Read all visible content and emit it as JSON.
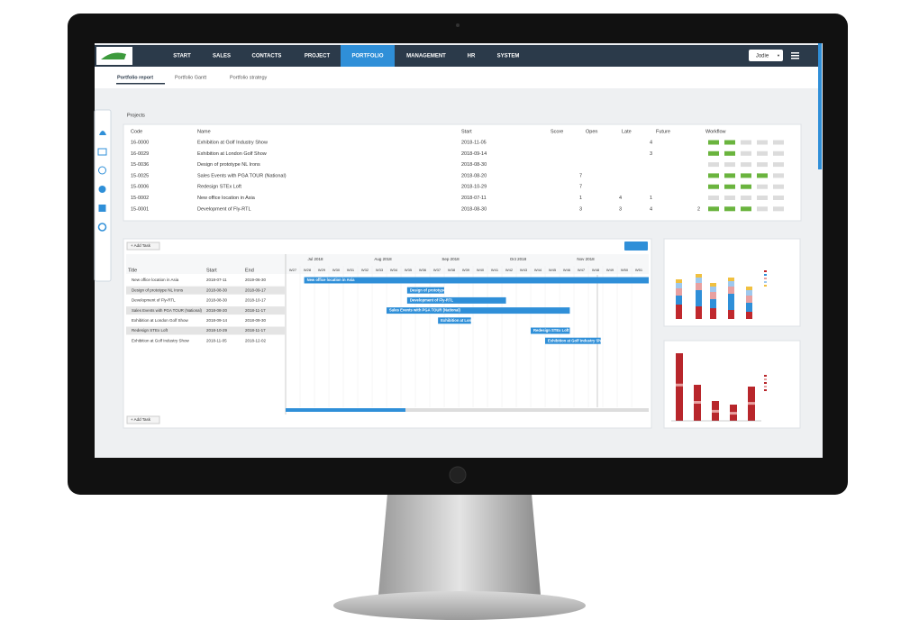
{
  "nav": {
    "items": [
      "START",
      "SALES",
      "CONTACTS",
      "PROJECT",
      "PORTFOLIO",
      "MANAGEMENT",
      "HR",
      "SYSTEM"
    ],
    "user": "Jodie"
  },
  "tabs": [
    "Portfolio report",
    "Portfolio Gantt",
    "Portfolio strategy"
  ],
  "projects": {
    "title": "Projects",
    "columns": [
      "Code",
      "Name",
      "Start",
      "Score",
      "Open",
      "Late",
      "Future",
      "Workflow"
    ],
    "rows": [
      {
        "code": "16-0000",
        "name": "Exhibition at Golf Industry Show",
        "start": "2018-11-05",
        "future": "4"
      },
      {
        "code": "16-0029",
        "name": "Exhibition at London Golf Show",
        "start": "2018-09-14",
        "future": "3"
      },
      {
        "code": "15-0036",
        "name": "Design of prototype NL Irons",
        "start": "2018-08-30"
      },
      {
        "code": "15-0025",
        "name": "Sales Events with PGA TOUR (National)",
        "start": "2018-08-20",
        "open": "7"
      },
      {
        "code": "15-0006",
        "name": "Redesign STEx Loft",
        "start": "2018-10-29",
        "open": "7"
      },
      {
        "code": "15-0002",
        "name": "New office location in Asia",
        "start": "2018-07-11",
        "open": "1",
        "late": "4",
        "future": "1"
      },
      {
        "code": "15-0001",
        "name": "Development of Fly-RTL",
        "start": "2018-08-30",
        "open": "3",
        "late": "3",
        "future": "4",
        "workflow": "2"
      }
    ]
  },
  "gantt": {
    "add_task": "+ Add Task",
    "columns": [
      "Title",
      "Start",
      "End"
    ],
    "months": [
      "Jul 2018",
      "Aug 2018",
      "Sep 2018",
      "Oct 2018",
      "Nov 2018"
    ],
    "weeks": [
      "W27",
      "W28",
      "W29",
      "W30",
      "W31",
      "W32",
      "W33",
      "W34",
      "W35",
      "W36",
      "W37",
      "W38",
      "W39",
      "W40",
      "W41",
      "W42",
      "W43",
      "W44",
      "W45",
      "W46",
      "W47",
      "W48",
      "W49",
      "W50",
      "W51"
    ],
    "rows": [
      {
        "title": "New office location in Asia",
        "start": "2018-07-11",
        "end": "2019-06-30"
      },
      {
        "title": "Design of prototype NL Irons",
        "start": "2018-08-30",
        "end": "2018-09-17"
      },
      {
        "title": "Development of Fly-RTL",
        "start": "2018-08-30",
        "end": "2018-10-17"
      },
      {
        "title": "Sales Events with PGA TOUR (National)",
        "start": "2018-08-20",
        "end": "2018-11-17"
      },
      {
        "title": "Exhibition at London Golf Show",
        "start": "2018-09-14",
        "end": "2018-09-30"
      },
      {
        "title": "Redesign STEx Loft",
        "start": "2018-10-29",
        "end": "2018-11-17"
      },
      {
        "title": "Exhibition at Golf Industry Show",
        "start": "2018-11-05",
        "end": "2018-12-02"
      }
    ]
  }
}
